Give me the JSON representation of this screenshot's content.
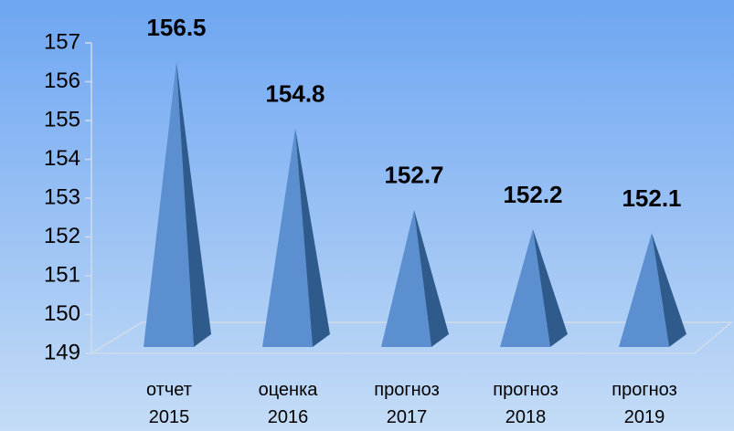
{
  "chart_data": {
    "type": "pyramid",
    "categories": [
      "отчет 2015",
      "оценка 2016",
      "прогноз 2017",
      "прогноз 2018",
      "прогноз 2019"
    ],
    "values": [
      156.5,
      154.8,
      152.7,
      152.2,
      152.1
    ],
    "color": "#5b8fd0",
    "ylim": [
      149,
      157
    ],
    "yticks": [
      149,
      150,
      151,
      152,
      153,
      154,
      155,
      156,
      157
    ]
  }
}
